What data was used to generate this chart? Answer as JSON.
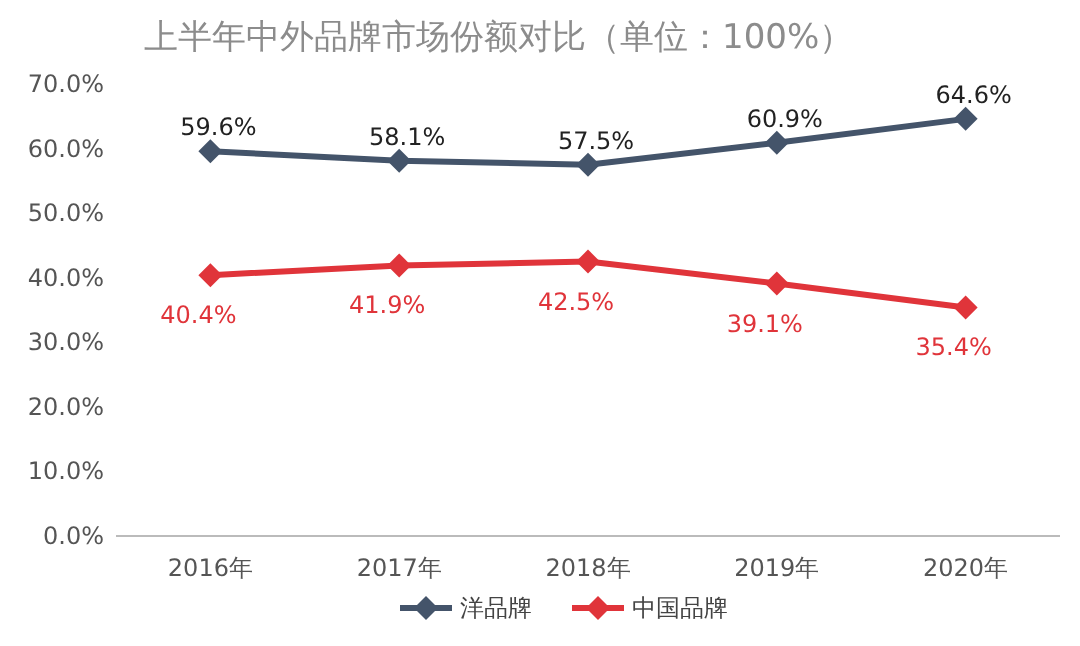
{
  "chart_data": {
    "type": "line",
    "title": "上半年中外品牌市场份额对比（单位：100%）",
    "categories": [
      "2016年",
      "2017年",
      "2018年",
      "2019年",
      "2020年"
    ],
    "series": [
      {
        "name": "洋品牌",
        "color": "#44546a",
        "values": [
          59.6,
          58.1,
          57.5,
          60.9,
          64.6
        ],
        "value_labels": [
          "59.6%",
          "58.1%",
          "57.5%",
          "60.9%",
          "64.6%"
        ]
      },
      {
        "name": "中国品牌",
        "color": "#e0343a",
        "values": [
          40.4,
          41.9,
          42.5,
          39.1,
          35.4
        ],
        "value_labels": [
          "40.4%",
          "41.9%",
          "42.5%",
          "39.1%",
          "35.4%"
        ]
      }
    ],
    "ylim": [
      0,
      70
    ],
    "yticks": [
      {
        "value": 0,
        "label": "0.0%"
      },
      {
        "value": 10,
        "label": "10.0%"
      },
      {
        "value": 20,
        "label": "20.0%"
      },
      {
        "value": 30,
        "label": "30.0%"
      },
      {
        "value": 40,
        "label": "40.0%"
      },
      {
        "value": 50,
        "label": "50.0%"
      },
      {
        "value": 60,
        "label": "60.0%"
      },
      {
        "value": 70,
        "label": "70.0%"
      }
    ],
    "grid": false,
    "legend": "bottom",
    "marker": "diamond",
    "line_style": "solid"
  }
}
